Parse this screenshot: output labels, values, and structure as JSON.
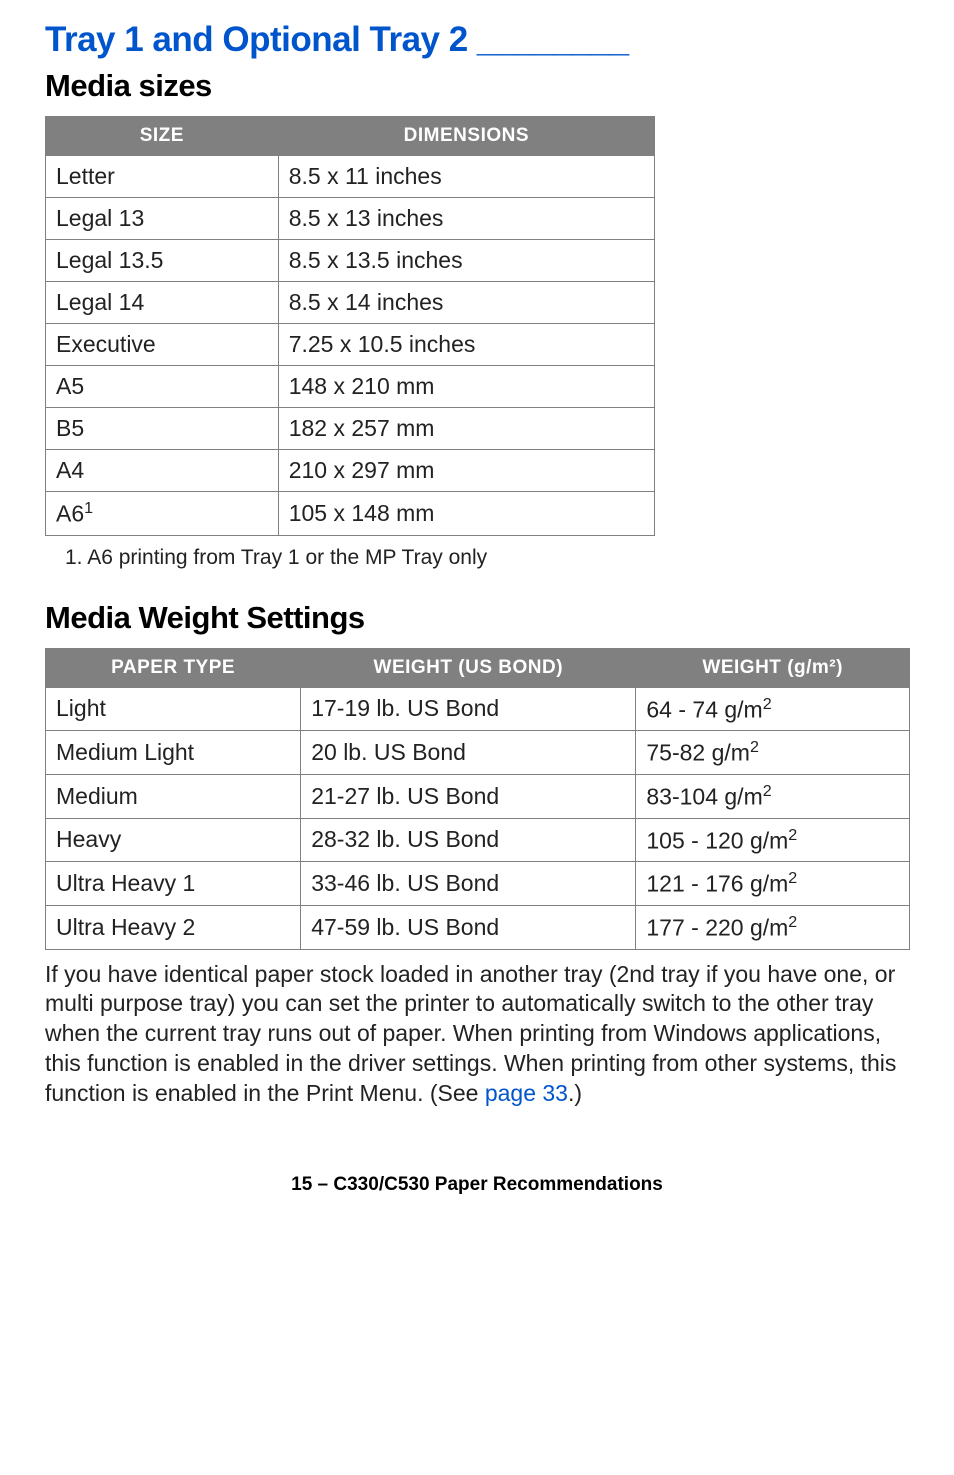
{
  "title": "Tray 1 and Optional Tray 2 ________",
  "section_media_sizes": {
    "heading": "Media sizes",
    "headers": {
      "size": "SIZE",
      "dimensions": "DIMENSIONS"
    },
    "rows": [
      {
        "size": "Letter",
        "dimensions": "8.5 x 11 inches"
      },
      {
        "size": "Legal 13",
        "dimensions": "8.5 x 13 inches"
      },
      {
        "size": "Legal 13.5",
        "dimensions": "8.5 x 13.5 inches"
      },
      {
        "size": "Legal 14",
        "dimensions": "8.5 x 14 inches"
      },
      {
        "size": "Executive",
        "dimensions": "7.25 x 10.5 inches"
      },
      {
        "size": "A5",
        "dimensions": "148 x 210 mm"
      },
      {
        "size": "B5",
        "dimensions": "182 x 257 mm"
      },
      {
        "size": "A4",
        "dimensions": "210 x 297 mm"
      },
      {
        "size": "A6",
        "size_sup": "1",
        "dimensions": "105 x 148 mm"
      }
    ],
    "footnote": "1. A6 printing from Tray 1 or the MP Tray only"
  },
  "section_media_weights": {
    "heading": "Media Weight Settings",
    "headers": {
      "paper_type": "PAPER TYPE",
      "weight_us": "WEIGHT (US BOND)",
      "weight_gm": "WEIGHT (g/m²)"
    },
    "rows": [
      {
        "type": "Light",
        "us": "17-19 lb. US Bond",
        "gm_pre": "64 - 74 g/m",
        "gm_sup": "2"
      },
      {
        "type": "Medium Light",
        "us": "20 lb. US Bond",
        "gm_pre": "75-82 g/m",
        "gm_sup": "2"
      },
      {
        "type": "Medium",
        "us": "21-27 lb. US Bond",
        "gm_pre": "83-104 g/m",
        "gm_sup": "2"
      },
      {
        "type": "Heavy",
        "us": "28-32 lb. US Bond",
        "gm_pre": "105 - 120 g/m",
        "gm_sup": "2"
      },
      {
        "type": "Ultra Heavy 1",
        "us": "33-46 lb. US Bond",
        "gm_pre": "121 - 176 g/m",
        "gm_sup": "2"
      },
      {
        "type": "Ultra Heavy 2",
        "us": "47-59 lb. US Bond",
        "gm_pre": "177 - 220 g/m",
        "gm_sup": "2"
      }
    ]
  },
  "body_paragraph": {
    "pre": "If you have identical paper stock loaded in another tray (2nd tray if you have one, or multi purpose tray) you can set the printer to automatically switch to the other tray when the current tray runs out of paper. When printing from Windows applications, this function is enabled in the driver settings. When printing from other systems, this function is enabled in the Print Menu. (See ",
    "link": "page 33",
    "post": ".)"
  },
  "footer": {
    "page": "15",
    "sep": "  –  ",
    "text": "C330/C530 Paper Recommendations"
  }
}
